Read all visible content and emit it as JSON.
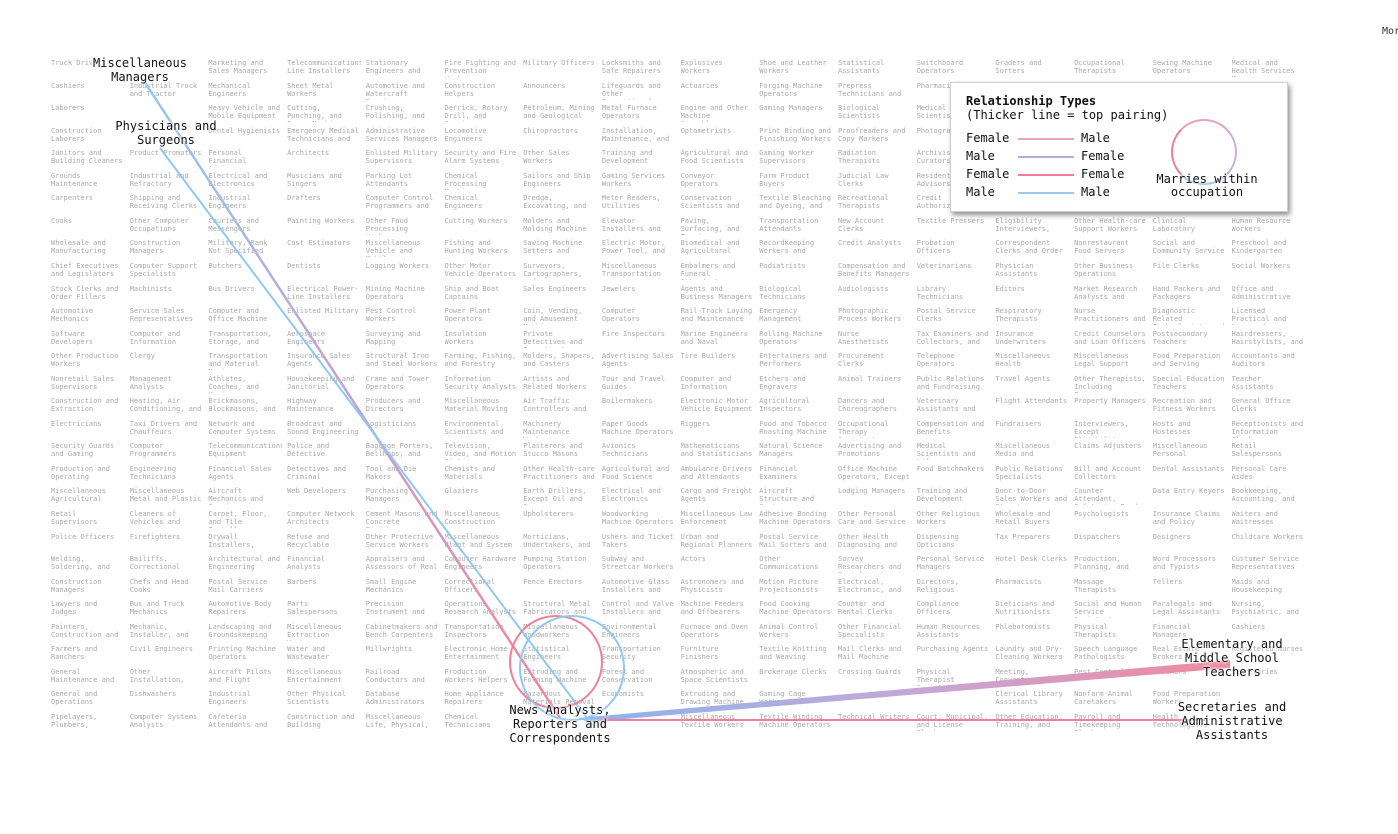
{
  "top_right_label": "Mor",
  "occupations": [
    [
      "Truck Drivers",
      "Miscellaneous Managers",
      "Marketing and Sales Managers",
      "Telecommunications Line Installers",
      "Stationary Engineers and",
      "Fire Fighting and Prevention Workers",
      "Military Officers",
      "Locksmiths and Safe Repairers",
      "Explosives Workers",
      "Shoe and Leather Workers",
      "Statistical Assistants",
      "Switchboard Operators",
      "Graders and Sorters",
      "Occupational Therapists",
      "Sewing Machine Operators",
      "Medical and Health Services Managers"
    ],
    [
      "Cashiers",
      "Industrial Truck and Tractor",
      "Mechanical Engineers",
      "Sheet Metal Workers",
      "Automotive and Watercraft Service",
      "Construction Helpers",
      "Announcers",
      "Lifeguards and Other Recreational",
      "Actuaries",
      "Forging Machine Operators",
      "Prepress Technicians and",
      "Pharmacists",
      "",
      "",
      "",
      ""
    ],
    [
      "Laborers",
      "",
      "Heavy Vehicle and Mobile Equipment",
      "Cutting, Punching, and Press Machine",
      "Crushing, Polishing, and",
      "Derrick, Rotary Drill, and Service",
      "Petroleum, Mining and Geological",
      "Metal Furnace Operators",
      "Engine and Other Machine Assemblers",
      "Gaming Managers",
      "Biological Scientists",
      "Medical Scientists",
      "",
      "",
      "",
      ""
    ],
    [
      "Construction Laborers",
      "Physicians and Surgeons",
      "Dental Hygienists",
      "Emergency Medical Technicians and",
      "Administrative Services Managers",
      "Locomotive Engineers",
      "Chiropractors",
      "Installation, Maintenance, and",
      "Optometrists",
      "Print Binding and Finishing Workers",
      "Proofreaders and Copy Markers",
      "Photographers",
      "",
      "",
      "",
      ""
    ],
    [
      "Janitors and Building Cleaners",
      "Product Promoters",
      "Personal Financial Advisors",
      "Architects",
      "Enlisted Military Supervisors",
      "Security and Fire Alarm Systems",
      "Other Sales Workers",
      "Training and Development",
      "Agricultural and Food Scientists",
      "Gaming Worker Supervisors",
      "Radiation Therapists",
      "Archivists Curators",
      "",
      "",
      "",
      ""
    ],
    [
      "Grounds Maintenance",
      "Industrial and Refractory",
      "Electrical and Electronics",
      "Musicians and Singers",
      "Parking Lot Attendants",
      "Chemical Processing Machine",
      "Sailors and Ship Engineers",
      "Gaming Services Workers",
      "Conveyor Operators",
      "Farm Product Buyers",
      "Judicial Law Clerks",
      "Residential Advisors",
      "",
      "",
      "",
      ""
    ],
    [
      "Carpenters",
      "Shipping and Receiving Clerks",
      "Industrial Engineers",
      "Drafters",
      "Computer Control Programmers and",
      "Chemical Engineers",
      "Dredge, Excavating, and",
      "Meter Readers, Utilities",
      "Conservation Scientists and",
      "Textile Bleaching and Dyeing, and",
      "Recreational Therapists",
      "Credit Authorizers",
      "",
      "",
      "",
      ""
    ],
    [
      "Cooks",
      "Other Computer Occupations",
      "Couriers and Messengers",
      "Painting Workers",
      "Other Food Processing Workers",
      "Cutting Workers",
      "Molders and Molding Machine",
      "Elevator Installers and",
      "Paving, Surfacing, and Tamping",
      "Transportation Attendants",
      "New Account Clerks",
      "Textile Pressers",
      "Eligibility Interviewers,",
      "Other Health-care Support Workers",
      "Clinical Laboratory",
      "Human Resource Workers"
    ],
    [
      "Wholesale and Manufacturing",
      "Construction Managers",
      "Military, Rank Not Specified",
      "Cost Estimators",
      "Miscellaneous Vehicle and Mobile",
      "Fishing and Hunting Workers",
      "Sawing Machine Setters and",
      "Electric Motor, Power Tool, and",
      "Biomedical and Agricultural",
      "Recordkeeping Workers and",
      "Credit Analysts",
      "Probation Officers",
      "Correspondent Clerks and Order",
      "Nonrestaurant Food Servers",
      "Social and Community Service",
      "Preschool and Kindergarten"
    ],
    [
      "Chief Executives and Legislators",
      "Computer Support Specialists",
      "Butchers",
      "Dentists",
      "Logging Workers",
      "Other Motor Vehicle Operators",
      "Surveyors, Cartographers, and",
      "Miscellaneous Transportation",
      "Embalmers and Funeral Attendants",
      "Podiatrists",
      "Compensation and Benefits Managers",
      "Veterinarians",
      "Physician Assistants",
      "Other Business Operations",
      "File Clerks",
      "Social Workers"
    ],
    [
      "Stock Clerks and Order Fillers",
      "Machinists",
      "Bus Drivers",
      "Electrical Power-Line Installers",
      "Mining Machine Operators",
      "Ship and Boat Captains",
      "Sales Engineers",
      "Jewelers",
      "Agents and Business Managers",
      "Biological Technicians",
      "Audiologists",
      "Library Technicians",
      "Editors",
      "Market Research Analysts and",
      "Hand Packers and Packagers",
      "Office and Administrative"
    ],
    [
      "Automotive Mechanics",
      "Service Sales Representatives",
      "Computer and Office Machine",
      "Enlisted Military",
      "Pest Control Workers",
      "Power Plant Operators",
      "Coin, Vending, and Amusement Machine",
      "Computer Operators",
      "Rail-Track Laying and Maintenance",
      "Emergency Management",
      "Photographic Process Workers",
      "Postal Service Clerks",
      "Respiratory Therapists",
      "Nurse Practitioners and",
      "Diagnostic Related Technologists and",
      "Licensed Practical and Licensed"
    ],
    [
      "Software Developers",
      "Computer and Information",
      "Transportation, Storage, and",
      "Aerospace Engineers",
      "Surveying and Mapping",
      "Insulation Workers",
      "Private Detectives and Investigators",
      "Fire Inspectors",
      "Marine Engineers and Naval",
      "Rolling Machine Operators",
      "Nurse Anesthetists",
      "Tax Examiners and Collectors, and",
      "Insurance Underwriters",
      "Credit Counselors and Loan Officers",
      "Postsecondary Teachers",
      "Hairdressers, Hairstylists, and"
    ],
    [
      "Other Production Workers",
      "Clergy",
      "Transportation and Material Moving",
      "Insurance Sales Agents",
      "Structural Iron and Steel Workers",
      "Farming, Fishing, and Forestry",
      "Molders, Shapers, and Casters",
      "Advertising Sales Agents",
      "Tire Builders",
      "Entertainers and Performers",
      "Procurement Clerks",
      "Telephone Operators",
      "Miscellaneous Health",
      "Miscellaneous Legal Support",
      "Food Preparation and Serving",
      "Accountants and Auditors"
    ],
    [
      "Nonretail Sales Supervisors",
      "Management Analysts",
      "Athletes, Coaches, and Umpires",
      "Housekeeping and Janitorial",
      "Crane and Tower Operators",
      "Information Security Analysts",
      "Artists and Related Workers",
      "Tour and Travel Guides",
      "Computer and Information",
      "Etchers and Engravers",
      "Animal Trainers",
      "Public Relations and Fundraising",
      "Travel Agents",
      "Other Therapists, Including Exercise",
      "Special Education Teachers",
      "Teacher Assistants"
    ],
    [
      "Construction and Extraction",
      "Heating, Air Conditioning, and",
      "Brickmasons, Blockmasons, and",
      "Highway Maintenance",
      "Producers and Directors",
      "Miscellaneous Material Moving",
      "Air Traffic Controllers and",
      "Boilermakers",
      "Electronic Motor Vehicle Equipment",
      "Agricultural Inspectors",
      "Dancers and Choreographers",
      "Veterinary Assistants and",
      "Flight Attendants",
      "Property Managers",
      "Recreation and Fitness Workers",
      "General Office Clerks"
    ],
    [
      "Electricians",
      "Taxi Drivers and Chauffeurs",
      "Network and Computer Systems",
      "Broadcast and Sound Engineering",
      "Logisticians",
      "Environmental Scientists and",
      "Machinery Maintenance Workers",
      "Paper Goods Machine Operators",
      "Riggers",
      "Food and Tobacco Roasting Machine",
      "Occupational Therapy Assistants",
      "Compensation and Benefits",
      "Fundraisers",
      "Interviewers, Except Eligibility",
      "Hosts and Hostesses",
      "Receptionists and Information Clerks"
    ],
    [
      "Security Guards and Gaming",
      "Computer Programmers",
      "Telecommunications Equipment",
      "Police and Detective",
      "Baggage Porters, Bellhops, and",
      "Television, Video, and Motion Picture",
      "Plasterers and Stucco Masons",
      "Avionics Technicians",
      "Mathematicians and Statisticians",
      "Natural Science Managers",
      "Advertising and Promotions",
      "Medical Scientists and Life",
      "Miscellaneous Media and",
      "Claims Adjusters",
      "Miscellaneous Personal",
      "Retail Salespersons"
    ],
    [
      "Production and Operating",
      "Engineering Technicians",
      "Financial Sales Agents",
      "Detectives and Criminal",
      "Tool and Die Makers",
      "Chemists and Materials",
      "Other Health-care Practitioners and",
      "Agricultural and Food Science",
      "Ambulance Drivers and Attendants",
      "Financial Examiners",
      "Office Machine Operators, Except",
      "Food Batchmakers",
      "Public Relations Specialists",
      "Bill and Account Collectors",
      "Dental Assistants",
      "Personal Care Aides"
    ],
    [
      "Miscellaneous Agricultural",
      "Miscellaneous Metal and Plastic",
      "Aircraft Mechanics and Service",
      "Web Developers",
      "Purchasing Managers",
      "Glaziers",
      "Earth Drillers, Except Oil and Gas",
      "Electrical and Electronics",
      "Cargo and Freight Agents",
      "Aircraft Structure and Systems",
      "Lodging Managers",
      "Training and Development",
      "Door-to-Door Sales Workers and Street",
      "Counter Attendant, Cafeteria, Food",
      "Data Entry Keyers",
      "Bookkeeping, Accounting, and"
    ],
    [
      "Retail Supervisors",
      "Cleaners of Vehicles and",
      "Carpet, Floor, and Tile Installers",
      "Computer Network Architects",
      "Cement Masons and Concrete Finishers",
      "Miscellaneous Construction",
      "Upholsterers",
      "Woodworking Machine Operators",
      "Miscellaneous Law Enforcement",
      "Adhesive Bonding Machine Operators",
      "Other Personal Care and Service",
      "Other Religious Workers",
      "Wholesale and Retail Buyers",
      "Psychologists",
      "Insurance Claims and Policy",
      "Waiters and Waitresses"
    ],
    [
      "Police Officers",
      "Firefighters",
      "Drywall Installers,",
      "Refuse and Recyclable",
      "Other Protective Service Workers",
      "Miscellaneous Plant and System",
      "Morticians, Undertakers, and",
      "Ushers and Ticket Takers",
      "Urban and Regional Planners",
      "Postal Service Mail Sorters and",
      "Other Health Diagnosing and",
      "Dispensing Opticians",
      "Tax Preparers",
      "Dispatchers",
      "Designers",
      "Childcare Workers"
    ],
    [
      "Welding, Soldering, and",
      "Bailiffs, Correctional",
      "Architectural and Engineering",
      "Financial Analysts",
      "Appraisers and Assessors of Real",
      "Computer Hardware Engineers",
      "Pumping Station Operators",
      "Subway and Streetcar Workers",
      "Actors",
      "Other Communications",
      "Survey Researchers and Sociologists",
      "Personal Service Managers",
      "Hotel Desk Clerks",
      "Production, Planning, and",
      "Word Processors and Typists",
      "Customer Service Representatives"
    ],
    [
      "Construction Managers",
      "Chefs and Head Cooks",
      "Postal Service Mail Carriers",
      "Barbers",
      "Small Engine Mechanics",
      "Correctional Officers",
      "Fence Erectors",
      "Automotive Glass Installers and",
      "Astronomers and Physicists",
      "Motion Picture Projectionists",
      "Electrical, Electronic, and",
      "Directors, Religious",
      "Pharmacists",
      "Massage Therapists",
      "Tellers",
      "Maids and Housekeeping"
    ],
    [
      "Lawyers and Judges",
      "Bus and Truck Mechanics",
      "Automotive Body Repairers",
      "Parts Salespersons",
      "Precision Instrument and",
      "Operations Research Analysts",
      "Structural Metal Fabricators and",
      "Control and Valve Installers and",
      "Machine Feeders and Offbearers",
      "Food Cooking Machine Operators",
      "Counter and Rental Clerks",
      "Compliance Officers",
      "Dieticians and Nutritionists",
      "Social and Human Service Assistants",
      "Paralegals and Legal Assistants",
      "Nursing, Psychiatric, and"
    ],
    [
      "Painters, Construction and",
      "Mechanic, Installer, and",
      "Landscaping and Groundskeeping",
      "Miscellaneous Extraction Workers",
      "Cabinetmakers and Bench Carpenters",
      "Transportation Inspectors",
      "Miscellaneous Woodworkers",
      "Environmental Engineers",
      "Furnace and Oven Operators",
      "Animal Control Workers",
      "Other Financial Specialists",
      "Human Resources Assistants",
      "Phlebotomists",
      "Physical Therapists",
      "Financial Managers",
      "Cashiers"
    ],
    [
      "Farmers and Ranchers",
      "Civil Engineers",
      "Printing Machine Operators",
      "Water and Wastewater",
      "Millwrights",
      "Electronic Home Entertainment",
      "Statistical Engineers",
      "Transportation Security Screeners",
      "Furniture Finishers",
      "Textile Knitting and Weaving",
      "Mail Clerks and Mail Machine",
      "Purchasing Agents",
      "Laundry and Dry-Cleaning Workers",
      "Speech Language Pathologists",
      "Real Estate Brokers",
      "Registered Nurses"
    ],
    [
      "General Maintenance and",
      "Other Installation,",
      "Aircraft Pilots and Flight",
      "Miscellaneous Entertainment",
      "Railroad Conductors and",
      "Production Workers Helpers",
      "Extruding and Forming Machine",
      "Forest and Conservation",
      "Atmospheric and Space Scientists",
      "Brokerage Clerks",
      "Crossing Guards",
      "Physical Therapist Assistants and",
      "Meeting, Convention, and",
      "Pest Control",
      "Teachers",
      "Secretaries"
    ],
    [
      "General and Operations",
      "Dishwashers",
      "Industrial Engineers",
      "Other Physical Scientists",
      "Database Administrators",
      "Home Appliance Repairers",
      "Hazardous Materials Removal",
      "Economists",
      "Extruding and Drawing Machine",
      "Gaming Cage Workers",
      "",
      "",
      "Clerical Library Assistants",
      "Nonfarm Animal Caretakers",
      "Food Preparation Workers",
      ""
    ],
    [
      "Pipelayers, Plumbers,",
      "Computer Systems Analysts",
      "Cafeteria Attendants and",
      "Construction and Building",
      "Miscellaneous Life, Physical,",
      "Chemical Technicians",
      "",
      "",
      "Miscellaneous Textile Workers",
      "Textile Winding Machine Operators",
      "Technical Writers",
      "Court, Municipal, and License Clerks",
      "Other Education, Training, and",
      "Payroll and Timekeeping Clerks",
      "Health Technologists",
      ""
    ]
  ],
  "highlights": {
    "misc_managers": "Miscellaneous\nManagers",
    "physicians": "Physicians and\nSurgeons",
    "news_analysts": "News Analysts,\nReporters and\nCorrespondents",
    "teachers": "Elementary and\nMiddle School\nTeachers",
    "secretaries": "Secretaries and\nAdministrative\nAssistants"
  },
  "link_colors": {
    "female_male": "#f0a0be",
    "male_female": "#b8aee0",
    "female_female": "#f07f96",
    "male_male": "#90c8f0"
  },
  "legend": {
    "title": "Relationship Types",
    "subtitle": "(Thicker line = top pairing)",
    "rows": [
      {
        "a": "Female",
        "b": "Male",
        "color": "#e9a3c2"
      },
      {
        "a": "Male",
        "b": "Female",
        "color": "#b9a8dc"
      },
      {
        "a": "Female",
        "b": "Female",
        "color": "#f07f96"
      },
      {
        "a": "Male",
        "b": "Male",
        "color": "#9ec8ee"
      }
    ],
    "ring_label": "Marries within\noccupation"
  }
}
